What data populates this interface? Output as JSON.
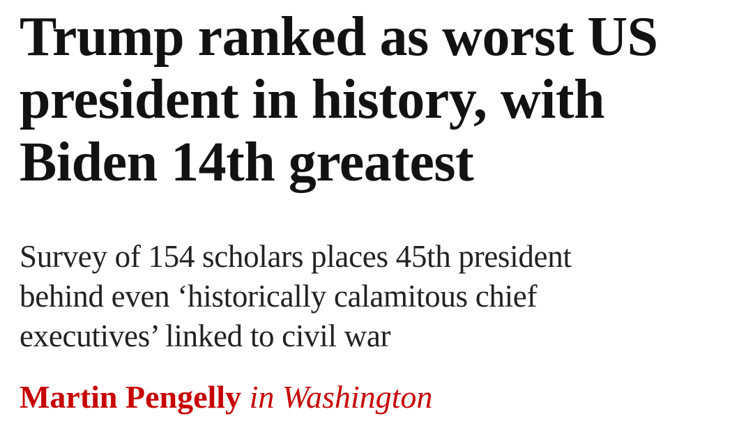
{
  "headline": {
    "lines": [
      "Trump ranked as worst US",
      "president in history, with",
      "Biden 14th greatest"
    ]
  },
  "standfirst": {
    "lines": [
      "Survey of 154 scholars places 45th president",
      "behind even ‘historically calamitous chief",
      "executives’ linked to civil war"
    ]
  },
  "byline": {
    "author": "Martin Pengelly",
    "location": "in Washington"
  }
}
